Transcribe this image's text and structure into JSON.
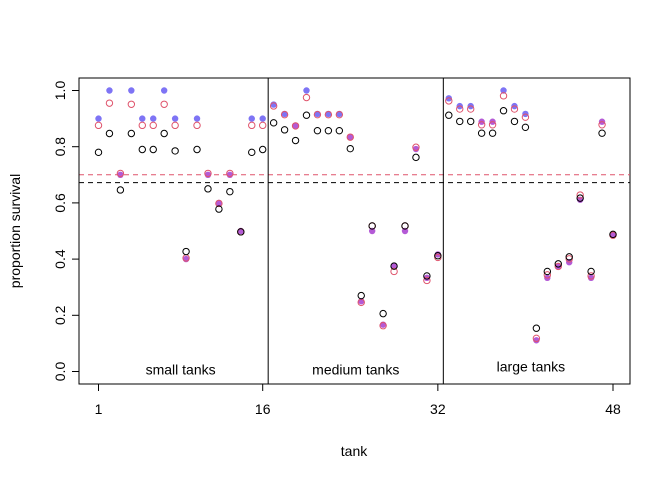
{
  "chart_data": {
    "type": "scatter",
    "title": "",
    "xlabel": "tank",
    "ylabel": "proportion survival",
    "xlim": [
      0,
      49
    ],
    "ylim": [
      -0.04,
      1.04
    ],
    "x_ticks": [
      1,
      16,
      32,
      48
    ],
    "x_tick_labels": [
      "1",
      "16",
      "32",
      "48"
    ],
    "y_ticks": [
      0.0,
      0.2,
      0.4,
      0.6,
      0.8,
      1.0
    ],
    "y_tick_labels": [
      "0.0",
      "0.2",
      "0.4",
      "0.6",
      "0.8",
      "1.0"
    ],
    "group_dividers": [
      16.5,
      32.5
    ],
    "group_labels": [
      {
        "label": "small tanks",
        "x": 8.5,
        "y": -0.01
      },
      {
        "label": "medium tanks",
        "x": 24.5,
        "y": -0.01
      },
      {
        "label": "large tanks",
        "x": 40.5,
        "y": 0.0
      }
    ],
    "reference_lines": [
      {
        "y": 0.7,
        "color": "#DF536B",
        "style": "dashed"
      },
      {
        "y": 0.672,
        "color": "#000000",
        "style": "dashed"
      }
    ],
    "series": [
      {
        "marker": "filled",
        "color": "#7E74F5",
        "color_alt": "#B45AD6",
        "y": [
          0.9,
          1.0,
          0.7,
          1.0,
          0.9,
          0.9,
          1.0,
          0.9,
          0.4,
          0.9,
          0.7,
          0.6,
          0.7,
          0.5,
          0.9,
          0.9,
          0.95,
          0.9167,
          0.875,
          1.0,
          0.9167,
          0.9167,
          0.9167,
          0.8333,
          0.25,
          0.5,
          0.1667,
          0.375,
          0.5,
          0.7917,
          0.3333,
          0.4167,
          0.9722,
          0.9444,
          0.9444,
          0.8889,
          0.8889,
          1.0,
          0.9444,
          0.9167,
          0.1111,
          0.3333,
          0.375,
          0.3889,
          0.6111,
          0.3333,
          0.8889,
          0.4861
        ]
      },
      {
        "marker": "open",
        "color": "#DF536B",
        "y": [
          0.876,
          0.955,
          0.705,
          0.951,
          0.876,
          0.876,
          0.951,
          0.876,
          0.404,
          0.876,
          0.705,
          0.598,
          0.705,
          0.497,
          0.876,
          0.876,
          0.945,
          0.914,
          0.874,
          0.975,
          0.914,
          0.914,
          0.914,
          0.834,
          0.246,
          0.518,
          0.163,
          0.356,
          0.518,
          0.798,
          0.324,
          0.406,
          0.963,
          0.934,
          0.934,
          0.878,
          0.878,
          0.981,
          0.934,
          0.905,
          0.118,
          0.344,
          0.374,
          0.401,
          0.628,
          0.34,
          0.878,
          0.485
        ]
      },
      {
        "marker": "open",
        "color": "#000000",
        "y": [
          0.78,
          0.847,
          0.646,
          0.847,
          0.79,
          0.79,
          0.847,
          0.785,
          0.427,
          0.79,
          0.65,
          0.578,
          0.64,
          0.497,
          0.78,
          0.79,
          0.885,
          0.86,
          0.822,
          0.912,
          0.857,
          0.857,
          0.857,
          0.793,
          0.27,
          0.518,
          0.206,
          0.375,
          0.518,
          0.762,
          0.34,
          0.412,
          0.912,
          0.89,
          0.89,
          0.848,
          0.848,
          0.928,
          0.89,
          0.869,
          0.154,
          0.356,
          0.383,
          0.408,
          0.617,
          0.356,
          0.848,
          0.488
        ]
      }
    ],
    "grid": false,
    "legend": "none"
  }
}
